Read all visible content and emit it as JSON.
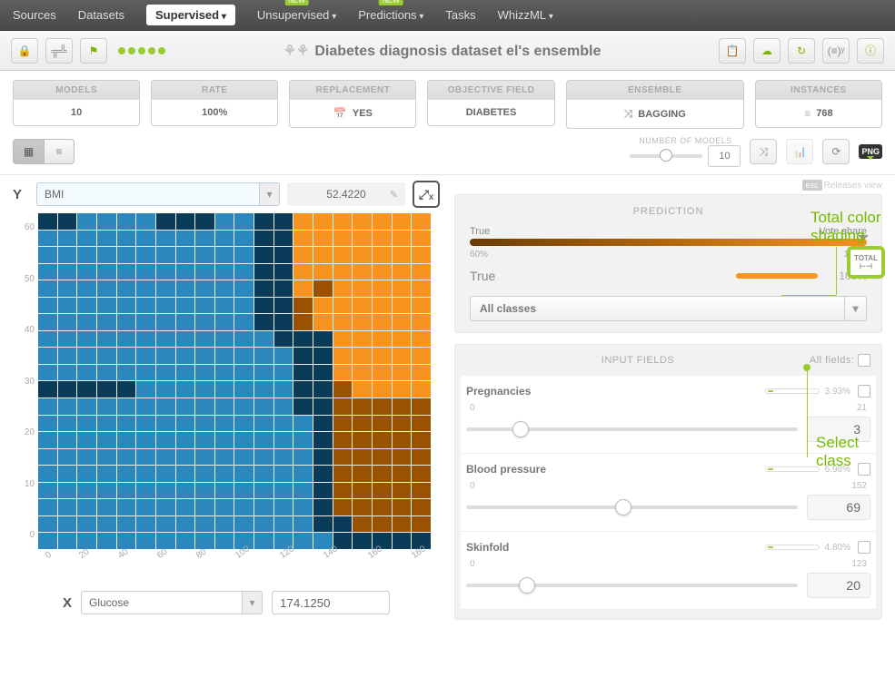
{
  "nav": {
    "items": [
      "Sources",
      "Datasets",
      "Supervised",
      "Unsupervised",
      "Predictions",
      "Tasks"
    ],
    "active": 2,
    "new_on": [
      3,
      4
    ],
    "right": "WhizzML"
  },
  "title": "Diabetes diagnosis dataset el's ensemble",
  "stats": {
    "models": {
      "label": "MODELS",
      "value": "10"
    },
    "rate": {
      "label": "RATE",
      "value": "100%"
    },
    "replacement": {
      "label": "REPLACEMENT",
      "value": "YES"
    },
    "objective": {
      "label": "OBJECTIVE FIELD",
      "value": "DIABETES"
    },
    "ensemble": {
      "label": "ENSEMBLE",
      "value": "BAGGING"
    },
    "instances": {
      "label": "INSTANCES",
      "value": "768"
    }
  },
  "subbar": {
    "num_models_label": "NUMBER OF MODELS",
    "num_models": "10",
    "slider_pos": 0.5,
    "png": "PNG"
  },
  "esc": {
    "kbd": "esc",
    "text": "Releases view"
  },
  "yaxis": {
    "label": "Y",
    "field": "BMI",
    "value": "52.4220"
  },
  "xaxis": {
    "label": "X",
    "field": "Glucose",
    "value": "174.1250"
  },
  "heatmap": {
    "yticks": [
      "0",
      "10",
      "20",
      "30",
      "40",
      "50",
      "60"
    ],
    "xticks": [
      "0",
      "20",
      "40",
      "60",
      "80",
      "100",
      "120",
      "140",
      "160",
      "180"
    ],
    "cols": 20,
    "rows": 20,
    "colors": {
      "blue": "#2a88bf",
      "darkblue": "#0a3c5a",
      "orange": "#f7931e",
      "darkorange": "#9a5200"
    },
    "cells_comment": "color index per cell, row 0 is top. 0=blue 1=darkblue 2=orange 3=darkorange",
    "cells": [
      [
        1,
        1,
        0,
        0,
        0,
        0,
        1,
        1,
        1,
        0,
        0,
        1,
        1,
        2,
        2,
        2,
        2,
        2,
        2,
        2
      ],
      [
        0,
        0,
        0,
        0,
        0,
        0,
        0,
        0,
        0,
        0,
        0,
        1,
        1,
        2,
        2,
        2,
        2,
        2,
        2,
        2
      ],
      [
        0,
        0,
        0,
        0,
        0,
        0,
        0,
        0,
        0,
        0,
        0,
        1,
        1,
        2,
        2,
        2,
        2,
        2,
        2,
        2
      ],
      [
        0,
        0,
        0,
        0,
        0,
        0,
        0,
        0,
        0,
        0,
        0,
        1,
        1,
        2,
        2,
        2,
        2,
        2,
        2,
        2
      ],
      [
        0,
        0,
        0,
        0,
        0,
        0,
        0,
        0,
        0,
        0,
        0,
        1,
        1,
        2,
        3,
        2,
        2,
        2,
        2,
        2
      ],
      [
        0,
        0,
        0,
        0,
        0,
        0,
        0,
        0,
        0,
        0,
        0,
        1,
        1,
        3,
        2,
        2,
        2,
        2,
        2,
        2
      ],
      [
        0,
        0,
        0,
        0,
        0,
        0,
        0,
        0,
        0,
        0,
        0,
        1,
        1,
        3,
        2,
        2,
        2,
        2,
        2,
        2
      ],
      [
        0,
        0,
        0,
        0,
        0,
        0,
        0,
        0,
        0,
        0,
        0,
        0,
        1,
        1,
        1,
        2,
        2,
        2,
        2,
        2
      ],
      [
        0,
        0,
        0,
        0,
        0,
        0,
        0,
        0,
        0,
        0,
        0,
        0,
        0,
        1,
        1,
        2,
        2,
        2,
        2,
        2
      ],
      [
        0,
        0,
        0,
        0,
        0,
        0,
        0,
        0,
        0,
        0,
        0,
        0,
        0,
        1,
        1,
        2,
        2,
        2,
        2,
        2
      ],
      [
        1,
        1,
        1,
        1,
        1,
        0,
        0,
        0,
        0,
        0,
        0,
        0,
        0,
        1,
        1,
        3,
        2,
        2,
        2,
        2
      ],
      [
        0,
        0,
        0,
        0,
        0,
        0,
        0,
        0,
        0,
        0,
        0,
        0,
        0,
        1,
        1,
        3,
        3,
        3,
        3,
        3
      ],
      [
        0,
        0,
        0,
        0,
        0,
        0,
        0,
        0,
        0,
        0,
        0,
        0,
        0,
        0,
        1,
        3,
        3,
        3,
        3,
        3
      ],
      [
        0,
        0,
        0,
        0,
        0,
        0,
        0,
        0,
        0,
        0,
        0,
        0,
        0,
        0,
        1,
        3,
        3,
        3,
        3,
        3
      ],
      [
        0,
        0,
        0,
        0,
        0,
        0,
        0,
        0,
        0,
        0,
        0,
        0,
        0,
        0,
        1,
        3,
        3,
        3,
        3,
        3
      ],
      [
        0,
        0,
        0,
        0,
        0,
        0,
        0,
        0,
        0,
        0,
        0,
        0,
        0,
        0,
        1,
        3,
        3,
        3,
        3,
        3
      ],
      [
        0,
        0,
        0,
        0,
        0,
        0,
        0,
        0,
        0,
        0,
        0,
        0,
        0,
        0,
        1,
        3,
        3,
        3,
        3,
        3
      ],
      [
        0,
        0,
        0,
        0,
        0,
        0,
        0,
        0,
        0,
        0,
        0,
        0,
        0,
        0,
        1,
        3,
        3,
        3,
        3,
        3
      ],
      [
        0,
        0,
        0,
        0,
        0,
        0,
        0,
        0,
        0,
        0,
        0,
        0,
        0,
        0,
        1,
        1,
        3,
        3,
        3,
        3
      ],
      [
        0,
        0,
        0,
        0,
        0,
        0,
        0,
        0,
        0,
        0,
        0,
        0,
        0,
        0,
        0,
        1,
        1,
        1,
        1,
        1
      ]
    ]
  },
  "prediction": {
    "hd": "PREDICTION",
    "label_left": "True",
    "label_right": "Vote share",
    "pct_left": "60%",
    "pct_right": "100%",
    "true_label": "True",
    "true_pct": "100%",
    "total": "TOTAL",
    "all_classes": "All classes"
  },
  "inputs": {
    "hd": "INPUT FIELDS",
    "all": "All fields:",
    "fields": [
      {
        "name": "Pregnancies",
        "min": "0",
        "max": "21",
        "value": "3",
        "imp": "3.93%",
        "knob": 0.14
      },
      {
        "name": "Blood pressure",
        "min": "0",
        "max": "152",
        "value": "69",
        "imp": "6.98%",
        "knob": 0.45
      },
      {
        "name": "Skinfold",
        "min": "0",
        "max": "123",
        "value": "20",
        "imp": "4.80%",
        "knob": 0.16
      }
    ]
  },
  "annotations": {
    "total": "Total color shading",
    "select": "Select class"
  }
}
